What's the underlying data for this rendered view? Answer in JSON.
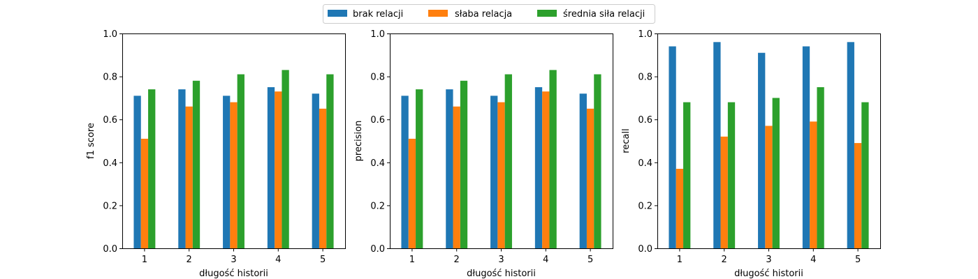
{
  "legend": {
    "placement": "top-center",
    "entries": [
      {
        "label": "brak relacji",
        "color": "#1f77b4"
      },
      {
        "label": "słaba relacja",
        "color": "#ff7f0e"
      },
      {
        "label": "średnia siła relacji",
        "color": "#2ca02c"
      }
    ]
  },
  "chart_data": [
    {
      "type": "bar",
      "xlabel": "długość historii",
      "ylabel": "f1 score",
      "categories": [
        "1",
        "2",
        "3",
        "4",
        "5"
      ],
      "ylim": [
        0,
        1.0
      ],
      "yticks": [
        "0.0",
        "0.2",
        "0.4",
        "0.6",
        "0.8",
        "1.0"
      ],
      "series": [
        {
          "name": "brak relacji",
          "color": "#1f77b4",
          "values": [
            0.71,
            0.74,
            0.71,
            0.75,
            0.72
          ]
        },
        {
          "name": "słaba relacja",
          "color": "#ff7f0e",
          "values": [
            0.51,
            0.66,
            0.68,
            0.73,
            0.65
          ]
        },
        {
          "name": "średnia siła relacji",
          "color": "#2ca02c",
          "values": [
            0.74,
            0.78,
            0.81,
            0.83,
            0.81
          ]
        }
      ]
    },
    {
      "type": "bar",
      "xlabel": "długość historii",
      "ylabel": "precision",
      "categories": [
        "1",
        "2",
        "3",
        "4",
        "5"
      ],
      "ylim": [
        0,
        1.0
      ],
      "yticks": [
        "0.0",
        "0.2",
        "0.4",
        "0.6",
        "0.8",
        "1.0"
      ],
      "series": [
        {
          "name": "brak relacji",
          "color": "#1f77b4",
          "values": [
            0.71,
            0.74,
            0.71,
            0.75,
            0.72
          ]
        },
        {
          "name": "słaba relacja",
          "color": "#ff7f0e",
          "values": [
            0.51,
            0.66,
            0.68,
            0.73,
            0.65
          ]
        },
        {
          "name": "średnia siła relacji",
          "color": "#2ca02c",
          "values": [
            0.74,
            0.78,
            0.81,
            0.83,
            0.81
          ]
        }
      ]
    },
    {
      "type": "bar",
      "xlabel": "długość historii",
      "ylabel": "recall",
      "categories": [
        "1",
        "2",
        "3",
        "4",
        "5"
      ],
      "ylim": [
        0,
        1.0
      ],
      "yticks": [
        "0.0",
        "0.2",
        "0.4",
        "0.6",
        "0.8",
        "1.0"
      ],
      "series": [
        {
          "name": "brak relacji",
          "color": "#1f77b4",
          "values": [
            0.94,
            0.96,
            0.91,
            0.94,
            0.96
          ]
        },
        {
          "name": "słaba relacja",
          "color": "#ff7f0e",
          "values": [
            0.37,
            0.52,
            0.57,
            0.59,
            0.49
          ]
        },
        {
          "name": "średnia siła relacji",
          "color": "#2ca02c",
          "values": [
            0.68,
            0.68,
            0.7,
            0.75,
            0.68
          ]
        }
      ]
    }
  ]
}
